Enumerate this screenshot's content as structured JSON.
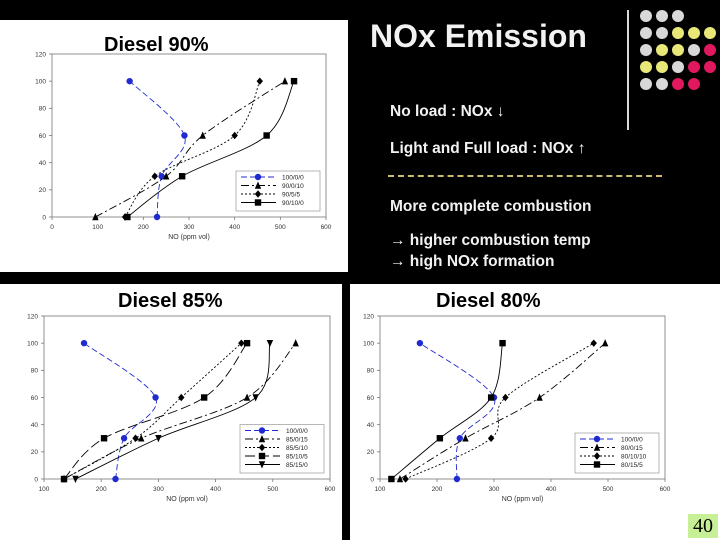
{
  "slide": {
    "title": "NOx Emission",
    "bullets": {
      "b1": "No load : NOx ↓",
      "b2": "Light and Full load : NOx ↑",
      "b3": "More complete combustion",
      "b4": "→ higher combustion temp",
      "b5": "→ high NOx formation"
    },
    "page_number": "40",
    "colors": {
      "background": "#000000",
      "title": "#f2f2f2",
      "accent_pink": "#e0185f",
      "accent_yellow": "#e8e878",
      "accent_gray": "#d8d8d8",
      "divider_dashed": "#cbbd70",
      "page_badge": "#c7ef96"
    }
  },
  "chart_data": [
    {
      "type": "line",
      "title": "Diesel 90%",
      "xlabel": "NO (ppm vol)",
      "ylabel": "",
      "xlim": [
        0,
        600
      ],
      "ylim": [
        0,
        120
      ],
      "xticks": [
        0,
        100,
        200,
        300,
        400,
        500,
        600
      ],
      "yticks": [
        0,
        20,
        40,
        60,
        80,
        100,
        120
      ],
      "legend_position": "bottom-right",
      "series": [
        {
          "name": "100/0/0",
          "color": "#1f2bd0",
          "dash": "6,3",
          "marker": "circle",
          "points": [
            [
              230,
              0
            ],
            [
              240,
              30
            ],
            [
              290,
              60
            ],
            [
              170,
              100
            ]
          ]
        },
        {
          "name": "90/0/10",
          "color": "#000000",
          "dash": "8,3,2,3",
          "marker": "triangle",
          "points": [
            [
              95,
              0
            ],
            [
              250,
              30
            ],
            [
              330,
              60
            ],
            [
              510,
              100
            ]
          ]
        },
        {
          "name": "90/5/5",
          "color": "#000000",
          "dash": "2,2",
          "marker": "diamond",
          "points": [
            [
              160,
              0
            ],
            [
              225,
              30
            ],
            [
              400,
              60
            ],
            [
              455,
              100
            ]
          ]
        },
        {
          "name": "90/10/0",
          "color": "#000000",
          "dash": "",
          "marker": "square",
          "points": [
            [
              165,
              0
            ],
            [
              285,
              30
            ],
            [
              470,
              60
            ],
            [
              530,
              100
            ]
          ]
        }
      ]
    },
    {
      "type": "line",
      "title": "Diesel 85%",
      "xlabel": "NO (ppm vol)",
      "ylabel": "",
      "xlim": [
        100,
        600
      ],
      "ylim": [
        0,
        120
      ],
      "xticks": [
        100,
        200,
        300,
        400,
        500,
        600
      ],
      "yticks": [
        0,
        20,
        40,
        60,
        80,
        100,
        120
      ],
      "legend_position": "bottom-right",
      "series": [
        {
          "name": "100/0/0",
          "color": "#1f2bd0",
          "dash": "6,3",
          "marker": "circle",
          "points": [
            [
              225,
              0
            ],
            [
              240,
              30
            ],
            [
              295,
              60
            ],
            [
              170,
              100
            ]
          ]
        },
        {
          "name": "85/0/15",
          "color": "#000000",
          "dash": "8,3,2,3",
          "marker": "triangle",
          "points": [
            [
              135,
              0
            ],
            [
              270,
              30
            ],
            [
              455,
              60
            ],
            [
              540,
              100
            ]
          ]
        },
        {
          "name": "85/5/10",
          "color": "#000000",
          "dash": "2,2",
          "marker": "diamond",
          "points": [
            [
              135,
              0
            ],
            [
              260,
              30
            ],
            [
              340,
              60
            ],
            [
              445,
              100
            ]
          ]
        },
        {
          "name": "85/10/5",
          "color": "#000000",
          "dash": "10,4",
          "marker": "square",
          "points": [
            [
              135,
              0
            ],
            [
              205,
              30
            ],
            [
              380,
              60
            ],
            [
              455,
              100
            ]
          ]
        },
        {
          "name": "85/15/0",
          "color": "#000000",
          "dash": "",
          "marker": "invtriangle",
          "points": [
            [
              155,
              0
            ],
            [
              300,
              30
            ],
            [
              470,
              60
            ],
            [
              495,
              100
            ]
          ]
        }
      ]
    },
    {
      "type": "line",
      "title": "Diesel 80%",
      "xlabel": "NO (ppm vol)",
      "ylabel": "",
      "xlim": [
        100,
        600
      ],
      "ylim": [
        0,
        120
      ],
      "xticks": [
        100,
        200,
        300,
        400,
        500,
        600
      ],
      "yticks": [
        0,
        20,
        40,
        60,
        80,
        100,
        120
      ],
      "legend_position": "bottom-right",
      "series": [
        {
          "name": "100/0/0",
          "color": "#1f2bd0",
          "dash": "6,3",
          "marker": "circle",
          "points": [
            [
              235,
              0
            ],
            [
              240,
              30
            ],
            [
              300,
              60
            ],
            [
              170,
              100
            ]
          ]
        },
        {
          "name": "80/0/15",
          "color": "#000000",
          "dash": "8,3,2,3",
          "marker": "triangle",
          "points": [
            [
              135,
              0
            ],
            [
              250,
              30
            ],
            [
              380,
              60
            ],
            [
              495,
              100
            ]
          ]
        },
        {
          "name": "80/10/10",
          "color": "#000000",
          "dash": "2,2",
          "marker": "diamond",
          "points": [
            [
              145,
              0
            ],
            [
              295,
              30
            ],
            [
              320,
              60
            ],
            [
              475,
              100
            ]
          ]
        },
        {
          "name": "80/15/5",
          "color": "#000000",
          "dash": "",
          "marker": "square",
          "points": [
            [
              120,
              0
            ],
            [
              205,
              30
            ],
            [
              295,
              60
            ],
            [
              315,
              100
            ]
          ]
        }
      ]
    }
  ]
}
